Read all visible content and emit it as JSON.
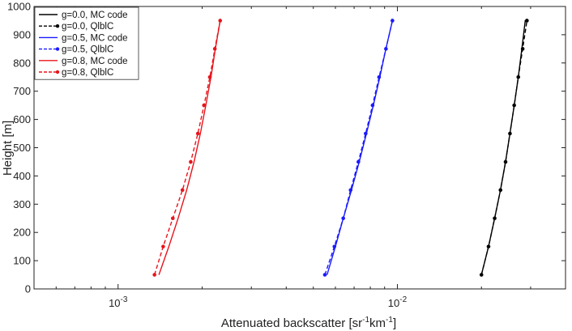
{
  "chart_data": {
    "type": "line",
    "xscale": "log",
    "xlim": [
      0.0005,
      0.04
    ],
    "ylim": [
      0,
      1000
    ],
    "xlabel": "Attenuated backscatter [sr",
    "xlabel_sup1": "-1",
    "xlabel_mid": "km",
    "xlabel_sup2": "-1",
    "xlabel_end": "]",
    "ylabel": "Height [m]",
    "x_ticks": [
      {
        "value": 0.001,
        "base": "10",
        "exp": "-3"
      },
      {
        "value": 0.01,
        "base": "10",
        "exp": "-2"
      }
    ],
    "y_ticks": [
      0,
      100,
      200,
      300,
      400,
      500,
      600,
      700,
      800,
      900,
      1000
    ],
    "grid": false,
    "legend_position": "top-left",
    "series": [
      {
        "name": "g=0.0, MC code",
        "color": "#000000",
        "style": "solid",
        "marker": false,
        "x": [
          0.02,
          0.0212,
          0.0223,
          0.0234,
          0.0244,
          0.0253,
          0.0262,
          0.0271,
          0.0279,
          0.0287,
          0.0295
        ],
        "y": [
          50,
          150,
          250,
          350,
          450,
          550,
          650,
          750,
          850,
          950,
          950
        ]
      },
      {
        "name": "g=0.0, QlblC",
        "color": "#000000",
        "style": "dashed",
        "marker": true,
        "x": [
          0.02,
          0.0212,
          0.0223,
          0.0234,
          0.0244,
          0.0253,
          0.0262,
          0.0271,
          0.0281,
          0.0291
        ],
        "y": [
          50,
          150,
          250,
          350,
          450,
          550,
          650,
          750,
          850,
          950
        ]
      },
      {
        "name": "g=0.5, MC code",
        "color": "#1a1aff",
        "style": "solid",
        "marker": false,
        "x": [
          0.0056,
          0.006,
          0.0064,
          0.00685,
          0.0073,
          0.00775,
          0.0082,
          0.00865,
          0.0091,
          0.0096
        ],
        "y": [
          50,
          150,
          250,
          350,
          450,
          550,
          650,
          750,
          850,
          950
        ]
      },
      {
        "name": "g=0.5, QlblC",
        "color": "#1a1aff",
        "style": "dashed",
        "marker": true,
        "x": [
          0.0055,
          0.00595,
          0.0064,
          0.0068,
          0.00725,
          0.0077,
          0.00815,
          0.0086,
          0.0091,
          0.0096
        ],
        "y": [
          50,
          150,
          250,
          350,
          450,
          550,
          650,
          750,
          850,
          950
        ]
      },
      {
        "name": "g=0.8, MC code",
        "color": "#e8141b",
        "style": "solid",
        "marker": false,
        "x": [
          0.0014,
          0.00152,
          0.00164,
          0.00176,
          0.00187,
          0.00197,
          0.00206,
          0.00215,
          0.00223,
          0.00232
        ],
        "y": [
          50,
          150,
          250,
          350,
          450,
          550,
          650,
          750,
          850,
          950
        ]
      },
      {
        "name": "g=0.8, QlblC",
        "color": "#e8141b",
        "style": "dashed",
        "marker": true,
        "x": [
          0.00135,
          0.00145,
          0.00157,
          0.0017,
          0.00182,
          0.00193,
          0.00203,
          0.00213,
          0.00222,
          0.00232
        ],
        "y": [
          50,
          150,
          250,
          350,
          450,
          550,
          650,
          750,
          850,
          950
        ]
      }
    ]
  }
}
